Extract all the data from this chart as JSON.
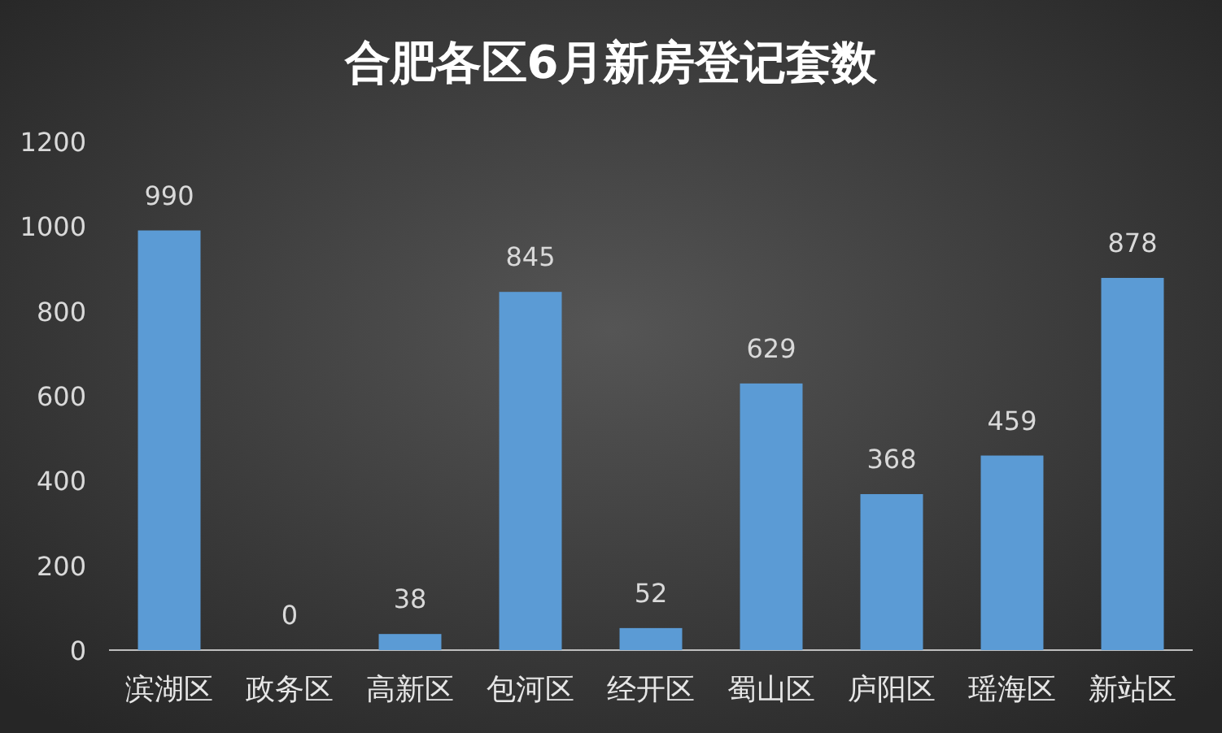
{
  "chart_data": {
    "type": "bar",
    "title": "合肥各区6月新房登记套数",
    "categories": [
      "滨湖区",
      "政务区",
      "高新区",
      "包河区",
      "经开区",
      "蜀山区",
      "庐阳区",
      "瑶海区",
      "新站区"
    ],
    "values": [
      990,
      0,
      38,
      845,
      52,
      629,
      368,
      459,
      878
    ],
    "color": "#5b9bd5",
    "ylim": [
      0,
      1200
    ],
    "yticks": [
      0,
      200,
      400,
      600,
      800,
      1000,
      1200
    ],
    "data_labels": true
  }
}
